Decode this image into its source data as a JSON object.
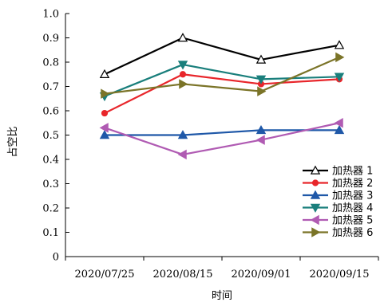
{
  "chart_data": {
    "type": "line",
    "categories": [
      "2020/07/25",
      "2020/08/15",
      "2020/09/01",
      "2020/09/15"
    ],
    "xlabel": "时间",
    "ylabel": "占空比",
    "ylim": [
      0,
      1.0
    ],
    "yticks": [
      "0",
      "0.1",
      "0.2",
      "0.3",
      "0.4",
      "0.5",
      "0.6",
      "0.7",
      "0.8",
      "0.9",
      "1.0"
    ],
    "grid": false,
    "legend_position": "bottom-right",
    "series": [
      {
        "name": "加热器 1",
        "values": [
          0.75,
          0.9,
          0.81,
          0.87
        ],
        "color": "#000000",
        "marker": "triangle-up-open"
      },
      {
        "name": "加热器 2",
        "values": [
          0.59,
          0.75,
          0.71,
          0.73
        ],
        "color": "#e8262b",
        "marker": "circle"
      },
      {
        "name": "加热器 3",
        "values": [
          0.5,
          0.5,
          0.52,
          0.52
        ],
        "color": "#1f58a8",
        "marker": "triangle-up"
      },
      {
        "name": "加热器 4",
        "values": [
          0.66,
          0.79,
          0.73,
          0.74
        ],
        "color": "#1a7f7c",
        "marker": "triangle-down"
      },
      {
        "name": "加热器 5",
        "values": [
          0.53,
          0.42,
          0.48,
          0.55
        ],
        "color": "#b05bb3",
        "marker": "triangle-left"
      },
      {
        "name": "加热器 6",
        "values": [
          0.67,
          0.71,
          0.68,
          0.82
        ],
        "color": "#7b7428",
        "marker": "triangle-right"
      }
    ]
  }
}
